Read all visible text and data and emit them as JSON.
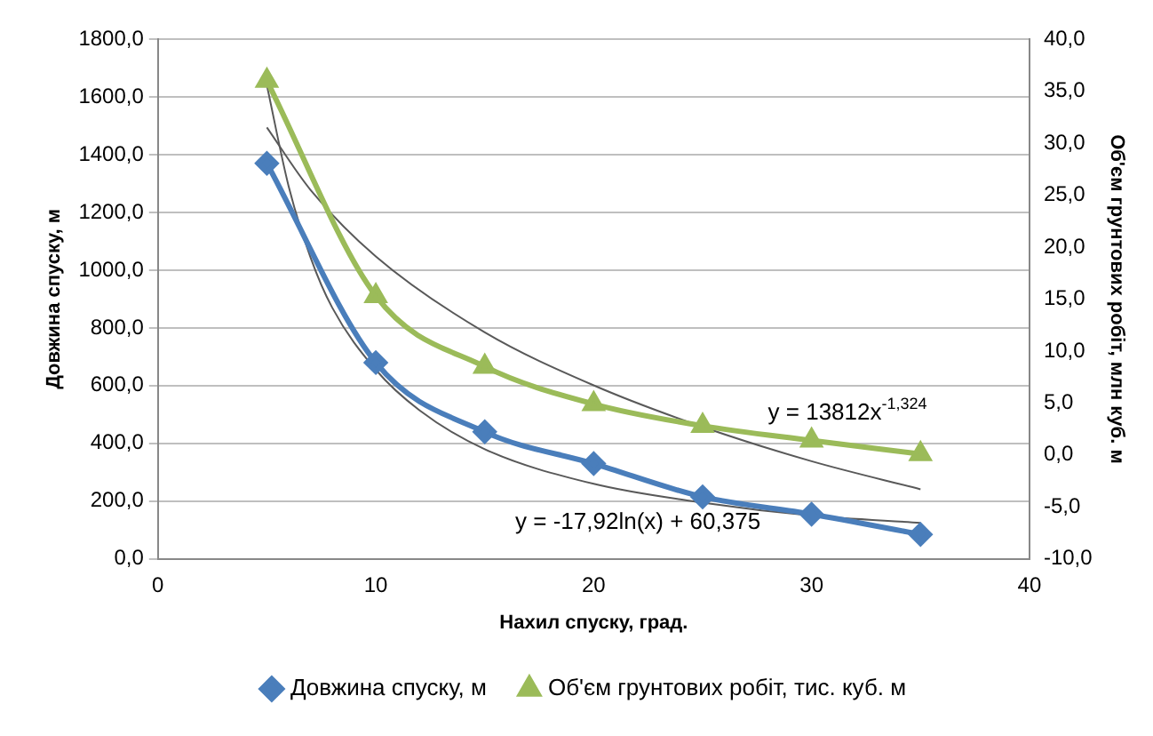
{
  "chart_data": {
    "type": "line",
    "xlabel": "Нахил спуску, град.",
    "ylabel": "Довжина спуску, м",
    "y2label": "Об'єм грунтових робіт, млн куб. м",
    "x": [
      5,
      10,
      15,
      20,
      25,
      30,
      35
    ],
    "series": [
      {
        "name": "Довжина спуску, м",
        "color": "#4a7ebb",
        "marker": "diamond",
        "values": [
          1370,
          680,
          440,
          330,
          215,
          155,
          85
        ]
      },
      {
        "name": "Об'єм грунтових робіт, тис. куб. м",
        "color": "#9bbb59",
        "marker": "triangle",
        "axis": "y2",
        "values": [
          36.0,
          15.3,
          8.5,
          4.9,
          2.8,
          1.4,
          0.1
        ]
      },
      {
        "type": "line",
        "color": "#595959",
        "marker": "none",
        "x": [
          5,
          6,
          7,
          8,
          10,
          12,
          15,
          20,
          25,
          30,
          35
        ],
        "values": [
          1640,
          1290,
          1045,
          870,
          655,
          515,
          380,
          260,
          195,
          150,
          125
        ]
      },
      {
        "type": "line",
        "color": "#595959",
        "marker": "none",
        "axis": "y2",
        "x": [
          5,
          7,
          10,
          15,
          20,
          25,
          30,
          35
        ],
        "values": [
          31.5,
          25.5,
          19.1,
          11.8,
          6.7,
          2.7,
          -0.6,
          -3.3
        ]
      }
    ],
    "xlim": [
      0,
      40
    ],
    "xticks": [
      0,
      10,
      20,
      30,
      40
    ],
    "ylim": [
      0,
      1800
    ],
    "yticks": [
      {
        "value": 0,
        "label": "0,0"
      },
      {
        "value": 200,
        "label": "200,0"
      },
      {
        "value": 400,
        "label": "400,0"
      },
      {
        "value": 600,
        "label": "600,0"
      },
      {
        "value": 800,
        "label": "800,0"
      },
      {
        "value": 1000,
        "label": "1000,0"
      },
      {
        "value": 1200,
        "label": "1200,0"
      },
      {
        "value": 1400,
        "label": "1400,0"
      },
      {
        "value": 1600,
        "label": "1600,0"
      },
      {
        "value": 1800,
        "label": "1800,0"
      }
    ],
    "y2lim": [
      -10,
      40
    ],
    "y2ticks": [
      {
        "value": -10,
        "label": "-10,0"
      },
      {
        "value": -5,
        "label": "-5,0"
      },
      {
        "value": 0,
        "label": "0,0"
      },
      {
        "value": 5,
        "label": "5,0"
      },
      {
        "value": 10,
        "label": "10,0"
      },
      {
        "value": 15,
        "label": "15,0"
      },
      {
        "value": 20,
        "label": "20,0"
      },
      {
        "value": 25,
        "label": "25,0"
      },
      {
        "value": 30,
        "label": "30,0"
      },
      {
        "value": 35,
        "label": "35,0"
      },
      {
        "value": 40,
        "label": "40,0"
      }
    ],
    "annotations": [
      "y = 13812x$^{-1,324}$",
      "y = -17,92ln(x) + 60,375"
    ],
    "grid": "y",
    "legend": "bottom"
  }
}
